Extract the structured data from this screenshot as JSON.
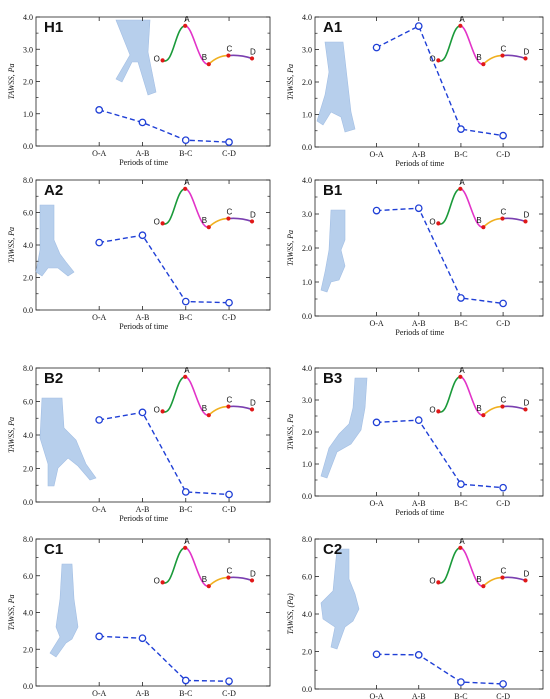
{
  "figure": {
    "colors": {
      "series": "#1f3fd6",
      "vessel": "#b4cdec",
      "wave_OA": "#1a9a3a",
      "wave_AB": "#e233c8",
      "wave_BC": "#f0b020",
      "wave_CD": "#7a3fb0",
      "wave_points": "#e01818"
    },
    "wave_labels": [
      "O",
      "A",
      "B",
      "C",
      "D"
    ]
  },
  "chart_data": [
    {
      "type": "line",
      "panel": "H1",
      "categories": [
        "O-A",
        "A-B",
        "B-C",
        "C-D"
      ],
      "values": [
        1.12,
        0.73,
        0.18,
        0.12
      ],
      "xlabel": "Periods of time",
      "ylabel": "TAWSS, Pa",
      "ylim": [
        0,
        4.0
      ],
      "yticks": [
        "0.0",
        "1.0",
        "2.0",
        "3.0",
        "4.0"
      ],
      "grid": false
    },
    {
      "type": "line",
      "panel": "A1",
      "categories": [
        "O-A",
        "A-B",
        "B-C",
        "C-D"
      ],
      "values": [
        3.06,
        3.72,
        0.55,
        0.35
      ],
      "xlabel": "Periods of time",
      "ylabel": "TAWSS, Pa",
      "ylim": [
        0,
        4.0
      ],
      "yticks": [
        "0.0",
        "1.0",
        "2.0",
        "3.0",
        "4.0"
      ],
      "grid": false
    },
    {
      "type": "line",
      "panel": "A2",
      "categories": [
        "O-A",
        "A-B",
        "B-C",
        "C-D"
      ],
      "values": [
        4.15,
        4.6,
        0.52,
        0.45
      ],
      "xlabel": "Periods of time",
      "ylabel": "TAWSS, Pa",
      "ylim": [
        0,
        8.0
      ],
      "yticks": [
        "0.0",
        "2.0",
        "4.0",
        "6.0",
        "8.0"
      ],
      "grid": false
    },
    {
      "type": "line",
      "panel": "B1",
      "categories": [
        "O-A",
        "A-B",
        "B-C",
        "C-D"
      ],
      "values": [
        3.1,
        3.17,
        0.53,
        0.37
      ],
      "xlabel": "Periods of time",
      "ylabel": "TAWSS, Pa",
      "ylim": [
        0,
        4.0
      ],
      "yticks": [
        "0.0",
        "1.0",
        "2.0",
        "3.0",
        "4.0"
      ],
      "grid": false
    },
    {
      "type": "line",
      "panel": "B2",
      "categories": [
        "O-A",
        "A-B",
        "B-C",
        "C-D"
      ],
      "values": [
        4.9,
        5.35,
        0.6,
        0.45
      ],
      "xlabel": "Periods of time",
      "ylabel": "TAWSS, Pa",
      "ylim": [
        0,
        8.0
      ],
      "yticks": [
        "0.0",
        "2.0",
        "4.0",
        "6.0",
        "8.0"
      ],
      "grid": false
    },
    {
      "type": "line",
      "panel": "B3",
      "categories": [
        "O-A",
        "A-B",
        "B-C",
        "C-D"
      ],
      "values": [
        2.3,
        2.37,
        0.37,
        0.26
      ],
      "xlabel": "Periods of time",
      "ylabel": "TAWSS, Pa",
      "ylim": [
        0,
        4.0
      ],
      "yticks": [
        "0.0",
        "1.0",
        "2.0",
        "3.0",
        "4.0"
      ],
      "grid": false
    },
    {
      "type": "line",
      "panel": "C1",
      "categories": [
        "O-A",
        "A-B",
        "B-C",
        "C-D"
      ],
      "values": [
        2.7,
        2.6,
        0.3,
        0.26
      ],
      "xlabel": "Periods of time",
      "ylabel": "TAWSS, Pa",
      "ylim": [
        0,
        8.0
      ],
      "yticks": [
        "0.0",
        "2.0",
        "4.0",
        "6.0",
        "8.0"
      ],
      "grid": false
    },
    {
      "type": "line",
      "panel": "C2",
      "categories": [
        "O-A",
        "A-B",
        "B-C",
        "C-D"
      ],
      "values": [
        1.85,
        1.82,
        0.37,
        0.27
      ],
      "xlabel": "Periods of time",
      "ylabel": "TAWSS, (Pa)",
      "ylim": [
        0,
        8.0
      ],
      "yticks": [
        "0.0",
        "2.0",
        "4.0",
        "6.0",
        "8.0"
      ],
      "grid": false
    }
  ]
}
